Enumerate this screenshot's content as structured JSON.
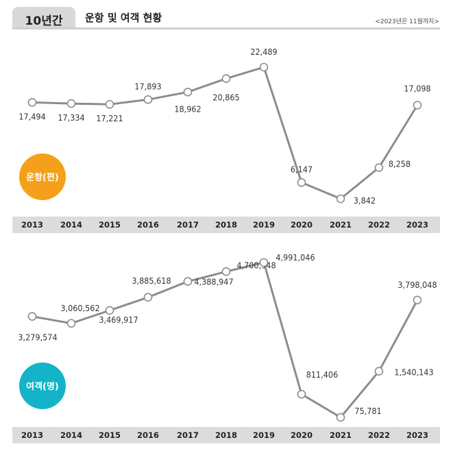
{
  "header": {
    "tab_label": "10년간",
    "title": "운항 및 여객 현황",
    "note": "<2023년은 11월까지>"
  },
  "chart_data": [
    {
      "type": "line",
      "badge": "운항(편)",
      "badge_color": "#f5a01a",
      "line_color": "#8c8c8c",
      "categories": [
        "2013",
        "2014",
        "2015",
        "2016",
        "2017",
        "2018",
        "2019",
        "2020",
        "2021",
        "2022",
        "2023"
      ],
      "values": [
        17494,
        17334,
        17221,
        17893,
        18962,
        20865,
        22489,
        6147,
        3842,
        8258,
        17098
      ],
      "labels": [
        "17,494",
        "17,334",
        "17,221",
        "17,893",
        "18,962",
        "20,865",
        "22,489",
        "6,147",
        "3,842",
        "8,258",
        "17,098"
      ]
    },
    {
      "type": "line",
      "badge": "여객(명)",
      "badge_color": "#13b3c8",
      "line_color": "#8c8c8c",
      "categories": [
        "2013",
        "2014",
        "2015",
        "2016",
        "2017",
        "2018",
        "2019",
        "2020",
        "2021",
        "2022",
        "2023"
      ],
      "values": [
        3279574,
        3060562,
        3469917,
        3885618,
        4388947,
        4700948,
        4991046,
        811406,
        75781,
        1540143,
        3798048
      ],
      "labels": [
        "3,279,574",
        "3,060,562",
        "3,469,917",
        "3,885,618",
        "4,388,947",
        "4,700,948",
        "4,991,046",
        "811,406",
        "75,781",
        "1,540,143",
        "3,798,048"
      ]
    }
  ]
}
